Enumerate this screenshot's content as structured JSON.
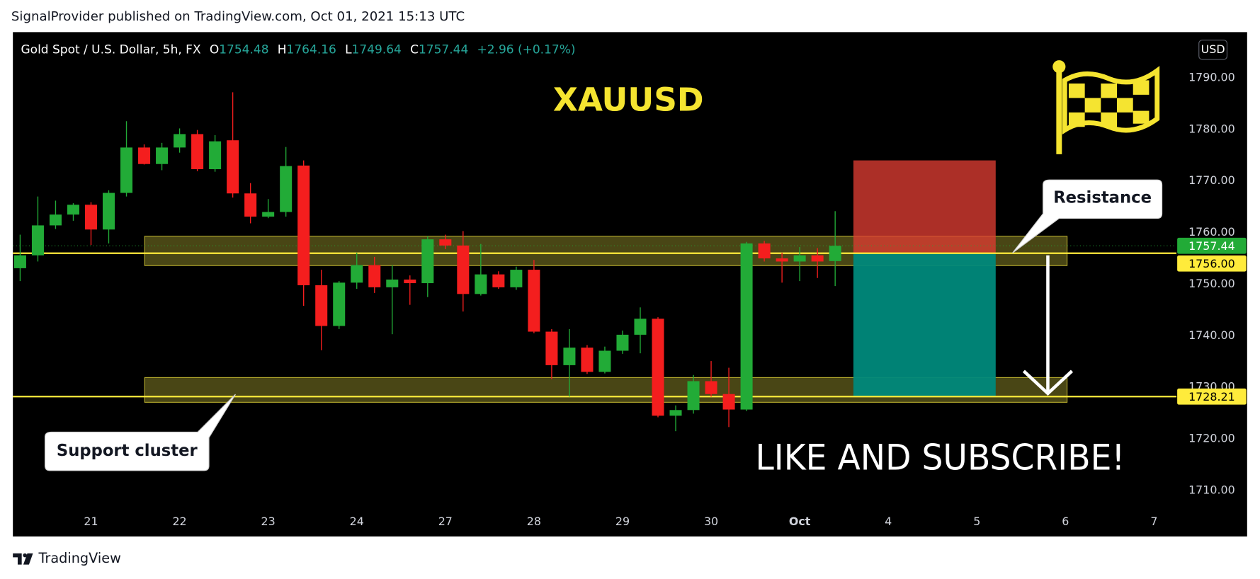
{
  "header": {
    "published": "SignalProvider published on TradingView.com, Oct 01, 2021 15:13 UTC"
  },
  "chart_data": {
    "type": "candlestick",
    "symbol": "Gold Spot / U.S. Dollar, 5h, FX",
    "ohlc_labels": [
      "O",
      "H",
      "L",
      "C"
    ],
    "change": "+2.96 (+0.17%)",
    "currency": "USD",
    "title": "XAUUSD",
    "x": [
      0,
      1,
      2,
      3,
      4,
      5,
      6,
      7,
      8,
      9,
      10,
      11,
      12,
      13,
      14,
      15,
      16,
      17,
      18,
      19,
      20,
      21,
      22,
      23,
      24,
      25,
      26,
      27,
      28,
      29,
      30,
      31,
      32,
      33,
      34,
      35,
      36,
      37,
      38,
      39,
      40,
      41,
      42,
      43,
      44,
      45,
      46
    ],
    "open": [
      1753.1,
      1755.6,
      1761.4,
      1763.5,
      1765.4,
      1760.6,
      1767.7,
      1776.5,
      1773.3,
      1776.5,
      1779.1,
      1772.3,
      1777.9,
      1767.6,
      1763.1,
      1764.0,
      1773.0,
      1749.8,
      1741.9,
      1750.3,
      1753.7,
      1749.4,
      1750.9,
      1750.2,
      1758.7,
      1757.5,
      1748.1,
      1751.9,
      1749.4,
      1752.8,
      1740.8,
      1734.3,
      1737.7,
      1733.0,
      1737.1,
      1740.2,
      1743.3,
      1724.5,
      1725.6,
      1731.2,
      1728.7,
      1725.7,
      1757.9,
      1755.0,
      1754.4,
      1755.6,
      1754.48
    ],
    "high": [
      1759.6,
      1767.0,
      1766.2,
      1765.7,
      1765.9,
      1768.2,
      1781.6,
      1777.1,
      1777.4,
      1780.2,
      1779.9,
      1778.9,
      1787.2,
      1769.6,
      1766.5,
      1776.6,
      1774.0,
      1752.8,
      1750.6,
      1756.1,
      1755.3,
      1753.7,
      1751.7,
      1759.3,
      1759.6,
      1760.3,
      1757.8,
      1752.5,
      1753.4,
      1754.7,
      1741.3,
      1741.3,
      1738.2,
      1737.9,
      1741.0,
      1745.5,
      1743.6,
      1726.5,
      1732.4,
      1735.1,
      1733.8,
      1758.2,
      1758.4,
      1756.1,
      1757.2,
      1757.0,
      1764.16
    ],
    "low": [
      1750.6,
      1754.4,
      1760.7,
      1762.3,
      1757.6,
      1757.9,
      1767.0,
      1773.2,
      1772.1,
      1775.5,
      1771.9,
      1771.8,
      1766.8,
      1761.8,
      1762.8,
      1763.1,
      1745.8,
      1737.2,
      1741.3,
      1749.1,
      1748.3,
      1740.3,
      1746.0,
      1747.5,
      1756.8,
      1744.7,
      1747.8,
      1749.1,
      1748.9,
      1740.5,
      1731.6,
      1728.2,
      1732.6,
      1732.7,
      1736.5,
      1736.6,
      1724.2,
      1721.5,
      1724.9,
      1728.2,
      1722.3,
      1725.4,
      1754.4,
      1750.3,
      1750.6,
      1751.2,
      1749.64
    ],
    "close": [
      1755.6,
      1761.4,
      1763.5,
      1765.4,
      1760.6,
      1767.7,
      1776.5,
      1773.3,
      1776.5,
      1779.1,
      1772.3,
      1777.7,
      1767.6,
      1763.1,
      1764.0,
      1772.9,
      1749.8,
      1741.9,
      1750.3,
      1753.7,
      1749.4,
      1750.9,
      1750.2,
      1758.7,
      1757.5,
      1748.1,
      1751.9,
      1749.4,
      1752.8,
      1740.8,
      1734.3,
      1737.7,
      1733.0,
      1737.1,
      1740.2,
      1743.3,
      1724.5,
      1725.6,
      1731.2,
      1728.7,
      1725.7,
      1757.9,
      1755.0,
      1754.4,
      1755.6,
      1754.4,
      1757.44
    ],
    "up_color": "#22ab37",
    "down_color": "#f41e1e",
    "xlim": [
      -0.41,
      65.17
    ],
    "xticks": [
      {
        "value": 4,
        "label": "21"
      },
      {
        "value": 9,
        "label": "22"
      },
      {
        "value": 14,
        "label": "23"
      },
      {
        "value": 19,
        "label": "24"
      },
      {
        "value": 24,
        "label": "27"
      },
      {
        "value": 29,
        "label": "28"
      },
      {
        "value": 34,
        "label": "29"
      },
      {
        "value": 39,
        "label": "30"
      },
      {
        "value": 44,
        "label": "Oct"
      },
      {
        "value": 49,
        "label": "4"
      },
      {
        "value": 54,
        "label": "5"
      },
      {
        "value": 59,
        "label": "6"
      },
      {
        "value": 64,
        "label": "7"
      }
    ],
    "ylim": [
      1706.7,
      1798.87
    ],
    "yticks": [
      {
        "value": 1710,
        "label": "1710.00"
      },
      {
        "value": 1720,
        "label": "1720.00"
      },
      {
        "value": 1730,
        "label": "1730.00"
      },
      {
        "value": 1740,
        "label": "1740.00"
      },
      {
        "value": 1750,
        "label": "1750.00"
      },
      {
        "value": 1760,
        "label": "1760.00"
      },
      {
        "value": 1770,
        "label": "1770.00"
      },
      {
        "value": 1780,
        "label": "1780.00"
      },
      {
        "value": 1790,
        "label": "1790.00"
      }
    ],
    "grid": false,
    "hlines": [
      {
        "value": 1756,
        "label": "1756.00"
      },
      1728.21
    ],
    "hline_color": "#ffeb3b",
    "zones": [
      {
        "x": [
          7.03,
          59.09
        ],
        "y": [
          1753.6,
          1759.3
        ]
      },
      {
        "x": [
          7.03,
          59.09
        ],
        "y": [
          1727.1,
          1731.9
        ]
      }
    ],
    "position": {
      "x": [
        47.03,
        55.06
      ],
      "entry": 1756,
      "stop": 1774,
      "target": 1728.21
    },
    "annotations": [
      "Resistance",
      "Support cluster",
      "LIKE AND SUBSCRIBE!"
    ]
  },
  "footer": {
    "brand": "TradingView"
  }
}
